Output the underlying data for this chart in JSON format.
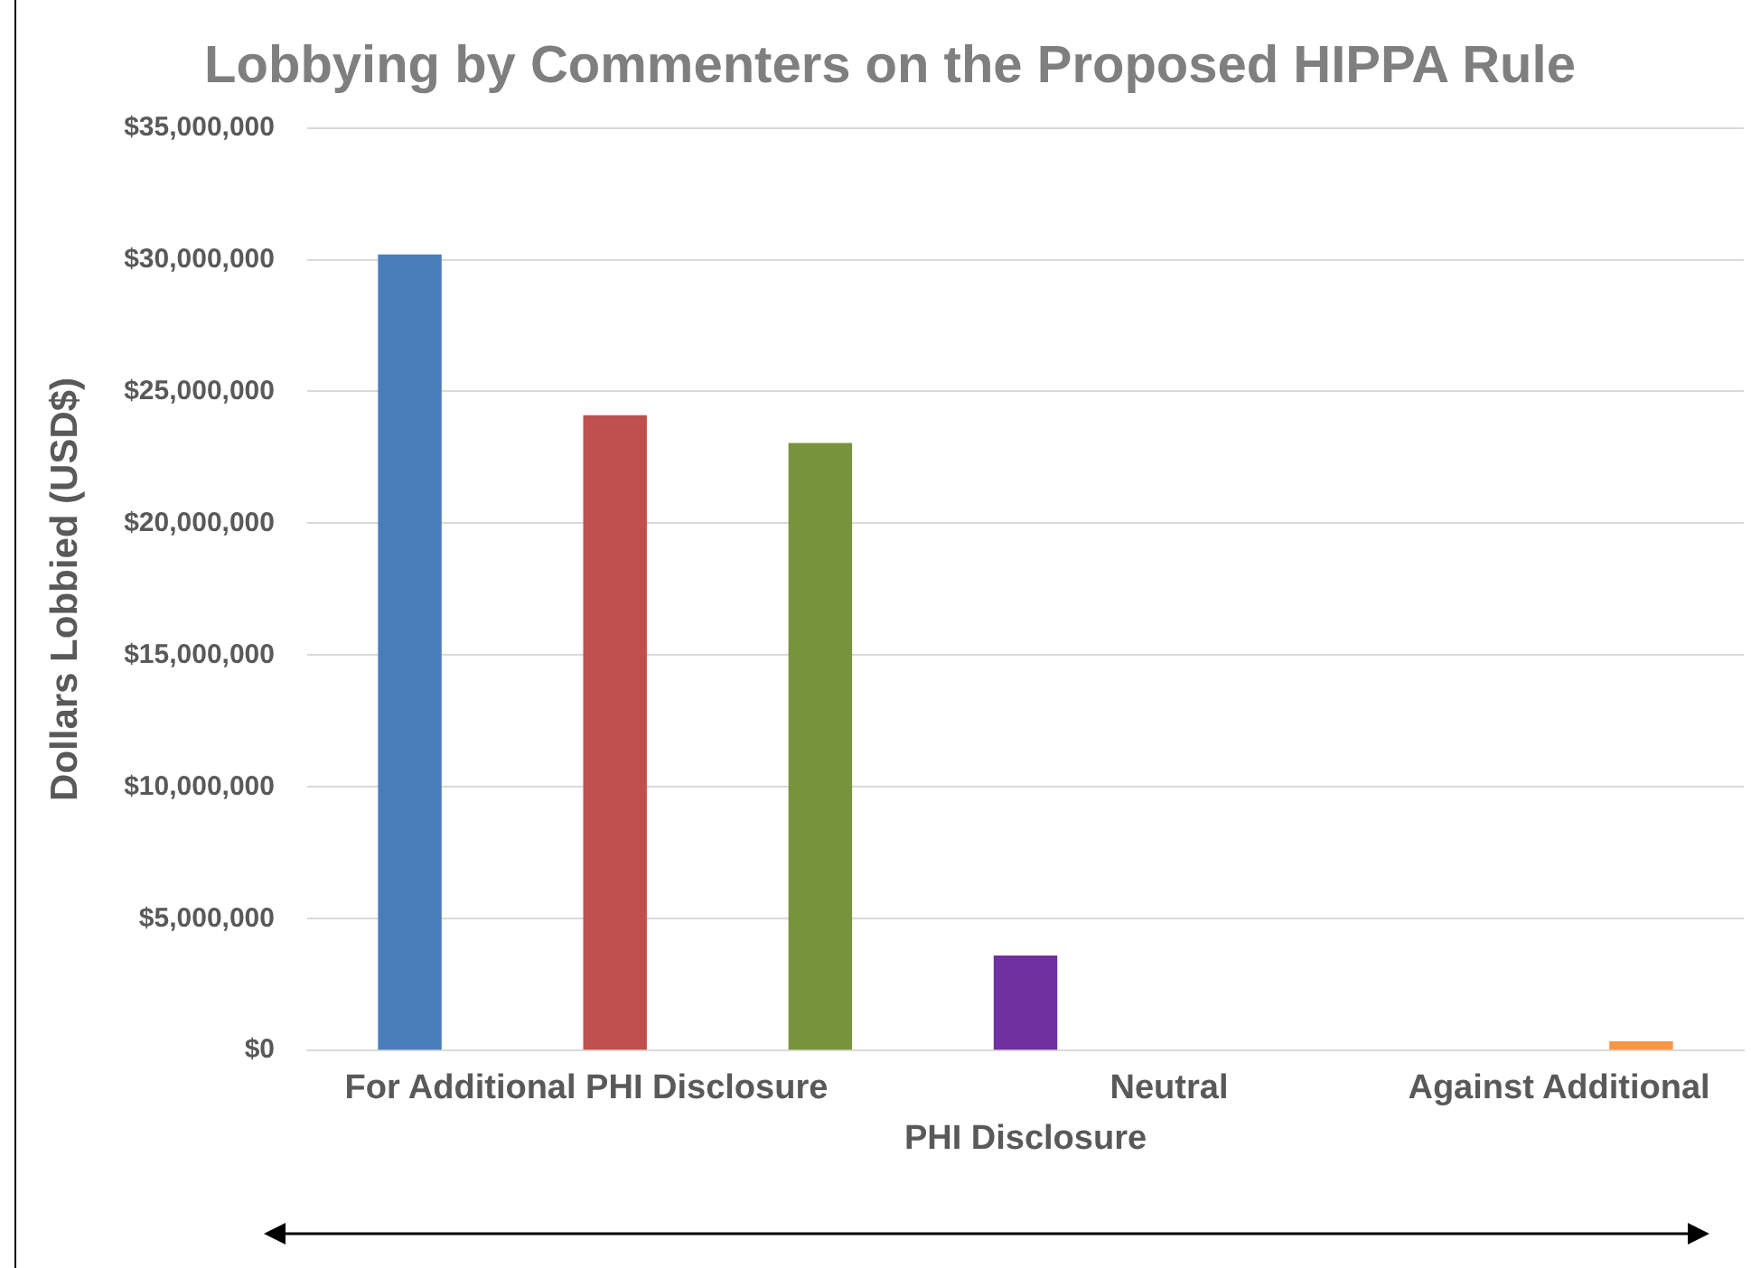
{
  "chart_data": {
    "type": "bar",
    "title": "Lobbying by Commenters on the Proposed HIPPA Rule",
    "ylabel": "Dollars Lobbied (USD$)",
    "categories": [
      null,
      null,
      null,
      null,
      null,
      null,
      null
    ],
    "values": [
      30200000,
      24100000,
      23050000,
      3600000,
      null,
      null,
      350000
    ],
    "colors": [
      "#4a7ebb",
      "#c0504d",
      "#77933c",
      "#7030a0",
      "#4a7ebb",
      "#4a7ebb",
      "#f79646"
    ],
    "ylim": [
      0,
      35000000
    ],
    "yticks": [
      {
        "value": 0,
        "label": "$0"
      },
      {
        "value": 5000000,
        "label": "$5,000,000"
      },
      {
        "value": 10000000,
        "label": "$10,000,000"
      },
      {
        "value": 15000000,
        "label": "$15,000,000"
      },
      {
        "value": 20000000,
        "label": "$20,000,000"
      },
      {
        "value": 25000000,
        "label": "$25,000,000"
      },
      {
        "value": 30000000,
        "label": "$30,000,000"
      },
      {
        "value": 35000000,
        "label": "$35,000,000"
      }
    ],
    "grid": "y",
    "legend": false,
    "annotations": [
      "For Additional PHI Disclosure",
      "Neutral",
      "Against Additional",
      "PHI Disclosure"
    ]
  }
}
